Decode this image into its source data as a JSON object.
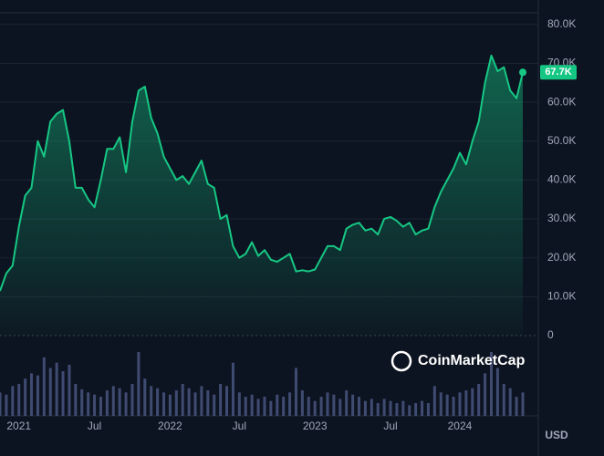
{
  "chart_data": {
    "type": "area",
    "color": "#16c784",
    "categories": [
      null,
      null,
      null,
      "2021",
      null,
      null,
      null,
      null,
      null,
      null,
      null,
      null,
      null,
      null,
      null,
      "Jul",
      null,
      null,
      null,
      null,
      null,
      null,
      null,
      null,
      null,
      null,
      null,
      "2022",
      null,
      null,
      null,
      null,
      null,
      null,
      null,
      null,
      null,
      null,
      "Jul",
      null,
      null,
      null,
      null,
      null,
      null,
      null,
      null,
      null,
      null,
      null,
      "2023",
      null,
      null,
      null,
      null,
      null,
      null,
      null,
      null,
      null,
      null,
      null,
      "Jul",
      null,
      null,
      null,
      null,
      null,
      null,
      null,
      null,
      null,
      null,
      "2024",
      null,
      null,
      null,
      null,
      null,
      null,
      null,
      null,
      null,
      null
    ],
    "values": [
      11500,
      16000,
      18000,
      28000,
      36000,
      38000,
      50000,
      46000,
      55000,
      57000,
      58000,
      50000,
      38000,
      38000,
      35000,
      33000,
      40000,
      48000,
      48000,
      51000,
      42000,
      55000,
      63000,
      64000,
      56000,
      52000,
      46000,
      43000,
      40000,
      41000,
      39000,
      42000,
      45000,
      39000,
      38000,
      30000,
      31000,
      23000,
      20000,
      21000,
      24000,
      20500,
      22000,
      19500,
      19000,
      20000,
      21000,
      16500,
      16800,
      16500,
      17000,
      20000,
      23000,
      23000,
      22000,
      27500,
      28500,
      29000,
      27000,
      27500,
      26000,
      30000,
      30500,
      29500,
      28000,
      29000,
      26000,
      27000,
      27500,
      33000,
      37000,
      40000,
      43000,
      47000,
      44000,
      50000,
      55000,
      65000,
      72000,
      68000,
      69000,
      63000,
      61000,
      67700
    ],
    "value_labels": [
      null,
      null,
      null,
      null,
      null,
      null,
      null,
      null,
      null,
      null,
      null,
      null,
      null,
      null,
      null,
      null,
      null,
      null,
      null,
      null,
      null,
      null,
      null,
      null,
      null,
      null,
      null,
      null,
      null,
      null,
      null,
      null,
      null,
      null,
      null,
      null,
      null,
      null,
      null,
      null,
      null,
      null,
      null,
      null,
      null,
      null,
      null,
      null,
      null,
      null,
      null,
      null,
      null,
      null,
      null,
      null,
      null,
      null,
      null,
      null,
      null,
      null,
      null,
      null,
      null,
      null,
      null,
      null,
      null,
      null,
      null,
      null,
      null,
      null,
      null,
      null,
      null,
      null,
      null,
      null,
      null,
      null,
      null,
      "67.7K"
    ],
    "volumes": [
      22,
      20,
      28,
      30,
      35,
      40,
      38,
      55,
      45,
      50,
      42,
      48,
      30,
      25,
      22,
      20,
      18,
      24,
      28,
      26,
      22,
      30,
      60,
      35,
      28,
      26,
      22,
      20,
      24,
      30,
      26,
      22,
      28,
      24,
      20,
      30,
      28,
      50,
      22,
      18,
      20,
      16,
      18,
      14,
      20,
      18,
      22,
      45,
      24,
      18,
      14,
      18,
      22,
      20,
      16,
      24,
      20,
      18,
      14,
      16,
      12,
      16,
      14,
      12,
      14,
      10,
      12,
      14,
      12,
      28,
      22,
      20,
      18,
      22,
      24,
      26,
      30,
      40,
      60,
      45,
      30,
      26,
      18,
      22
    ],
    "ylim": [
      0,
      83000
    ],
    "yticks": [
      0,
      {
        "value": 10000,
        "label": "10.0K"
      },
      {
        "value": 20000,
        "label": "20.0K"
      },
      {
        "value": 30000,
        "label": "30.0K"
      },
      {
        "value": 40000,
        "label": "40.0K"
      },
      {
        "value": 50000,
        "label": "50.0K"
      },
      {
        "value": 60000,
        "label": "60.0K"
      },
      {
        "value": 70000,
        "label": "70.0K"
      },
      {
        "value": 80000,
        "label": "80.0K"
      }
    ],
    "grid": true,
    "currency": "USD",
    "watermark": "CoinMarketCap"
  }
}
